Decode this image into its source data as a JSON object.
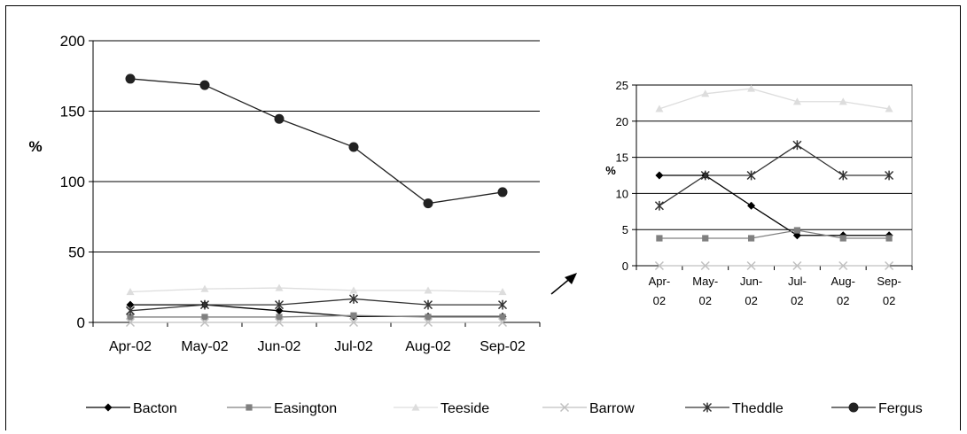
{
  "chart_data": [
    {
      "type": "line",
      "ylabel": "%",
      "ylim": [
        0,
        200
      ],
      "yticks": [
        0,
        50,
        100,
        150,
        200
      ],
      "categories": [
        "Apr-02",
        "May-02",
        "Jun-02",
        "Jul-02",
        "Aug-02",
        "Sep-02"
      ],
      "grid": true,
      "series": [
        {
          "name": "Bacton",
          "values": [
            12.5,
            12.5,
            8.3,
            4.2,
            4.2,
            4.2
          ],
          "color": "#000000",
          "marker": "diamond"
        },
        {
          "name": "Easington",
          "values": [
            3.8,
            3.8,
            3.8,
            4.9,
            3.8,
            3.8
          ],
          "color": "#808080",
          "marker": "square"
        },
        {
          "name": "Teeside",
          "values": [
            21.7,
            23.8,
            24.5,
            22.7,
            22.7,
            21.7
          ],
          "color": "#dddddd",
          "marker": "triangle"
        },
        {
          "name": "Barrow",
          "values": [
            0,
            0,
            0,
            0,
            0,
            0
          ],
          "color": "#c0c0c0",
          "marker": "x"
        },
        {
          "name": "Theddle",
          "values": [
            8.3,
            12.5,
            12.5,
            16.7,
            12.5,
            12.5
          ],
          "color": "#333333",
          "marker": "star"
        },
        {
          "name": "Fergus",
          "values": [
            173,
            168.5,
            144.5,
            124.5,
            84.5,
            92.5
          ],
          "color": "#222222",
          "marker": "circle"
        }
      ]
    },
    {
      "type": "line",
      "ylabel": "%",
      "ylim": [
        0,
        25
      ],
      "yticks": [
        0,
        5,
        10,
        15,
        20,
        25
      ],
      "categories": [
        [
          "Apr-",
          "02"
        ],
        [
          "May-",
          "02"
        ],
        [
          "Jun-",
          "02"
        ],
        [
          "Jul-",
          "02"
        ],
        [
          "Aug-",
          "02"
        ],
        [
          "Sep-",
          "02"
        ]
      ],
      "grid": true,
      "series_ref": "same series as main chart excluding Fergus",
      "legend": "bottom"
    }
  ],
  "legend": [
    "Bacton",
    "Easington",
    "Teeside",
    "Barrow",
    "Theddle",
    "Fergus"
  ],
  "arrow_icon": "arrow-up-right-icon"
}
